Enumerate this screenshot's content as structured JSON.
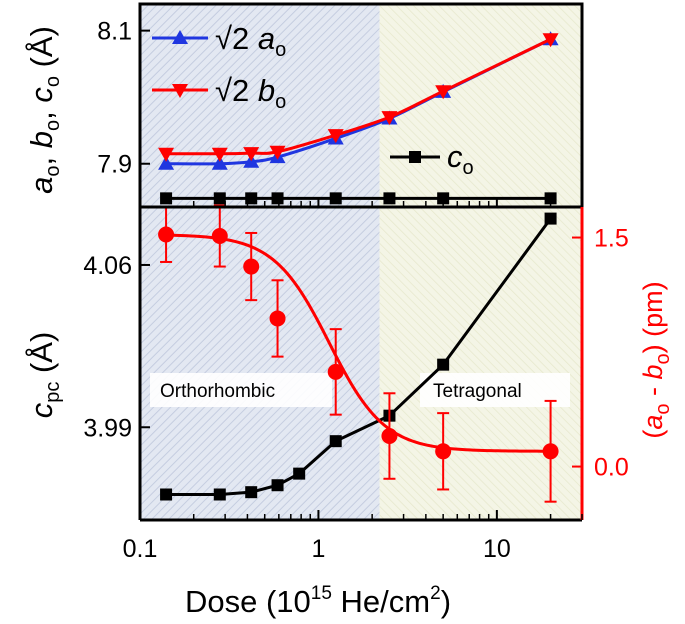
{
  "figure": {
    "xlabel_main": "Dose (10",
    "xlabel_sup": "15",
    "xlabel_rest": " He/cm",
    "xlabel_sup2": "2",
    "xlabel_end": ")",
    "x_ticks": [
      "0.1",
      "1",
      "10"
    ],
    "top_ylabel": "a_o, b_o, c_o (Å)",
    "bottom_ylabel_left": "c_pc (Å)",
    "bottom_ylabel_right": "(a_o - b_o) (pm)",
    "phase_left": "Orthorhombic",
    "phase_right": "Tetragonal",
    "phase_boundary_dose": 2.2,
    "colors": {
      "ortho_region": "#dde3ee",
      "tetra_region": "#f2f3e1",
      "blue": "#1f36e0",
      "red": "#ff0000",
      "black": "#000000"
    }
  },
  "chart_data": [
    {
      "type": "line",
      "title": "",
      "xlabel": "Dose (10^15 He/cm^2)",
      "ylabel": "a_o, b_o, c_o (Å)",
      "xscale": "log",
      "xlim": [
        0.1,
        30
      ],
      "ylim": [
        7.835,
        8.14
      ],
      "y_ticks": [
        "7.9",
        "8.1"
      ],
      "y_tick_values": [
        7.9,
        8.1
      ],
      "legend": "top-left",
      "x": [
        0.14,
        0.28,
        0.42,
        0.59,
        1.25,
        2.5,
        5.0,
        20.0
      ],
      "series": [
        {
          "name": "√2 a_o",
          "marker": "triangle-up",
          "color": "#1f36e0",
          "values": [
            7.9,
            7.9,
            7.903,
            7.91,
            7.938,
            7.968,
            8.008,
            8.087
          ]
        },
        {
          "name": "√2 b_o",
          "marker": "triangle-down",
          "color": "#ff0000",
          "values": [
            7.915,
            7.915,
            7.916,
            7.918,
            7.943,
            7.97,
            8.009,
            8.087
          ]
        },
        {
          "name": "c_o",
          "marker": "square",
          "color": "#000000",
          "values": [
            7.848,
            7.848,
            7.848,
            7.848,
            7.848,
            7.848,
            7.848,
            7.848
          ]
        }
      ]
    },
    {
      "type": "line",
      "title": "",
      "xlabel": "Dose (10^15 He/cm^2)",
      "ylabel": "c_pc (Å)",
      "y2label": "(a_o - b_o) (pm)",
      "xscale": "log",
      "xlim": [
        0.1,
        30
      ],
      "ylim": [
        3.95,
        4.085
      ],
      "y_ticks": [
        "3.99",
        "4.06"
      ],
      "y_tick_values": [
        3.99,
        4.06
      ],
      "y2lim": [
        -0.35,
        1.7
      ],
      "y2_ticks": [
        "0.0",
        "1.5"
      ],
      "y2_tick_values": [
        0.0,
        1.5
      ],
      "x": [
        0.14,
        0.28,
        0.42,
        0.59,
        1.25,
        2.5,
        5.0,
        20.0
      ],
      "series": [
        {
          "name": "c_pc",
          "marker": "square",
          "color": "#000000",
          "axis": "left",
          "x": [
            0.14,
            0.28,
            0.42,
            0.59,
            0.78,
            1.25,
            2.5,
            5.0,
            20.0
          ],
          "values": [
            3.961,
            3.961,
            3.962,
            3.965,
            3.97,
            3.984,
            3.995,
            4.017,
            4.08
          ]
        },
        {
          "name": "a_o - b_o",
          "marker": "circle",
          "color": "#ff0000",
          "axis": "right",
          "values": [
            1.52,
            1.51,
            1.31,
            0.97,
            0.62,
            0.2,
            0.1,
            0.1
          ],
          "errors": [
            0.18,
            0.2,
            0.22,
            0.25,
            0.28,
            0.28,
            0.25,
            0.33
          ]
        }
      ]
    }
  ]
}
